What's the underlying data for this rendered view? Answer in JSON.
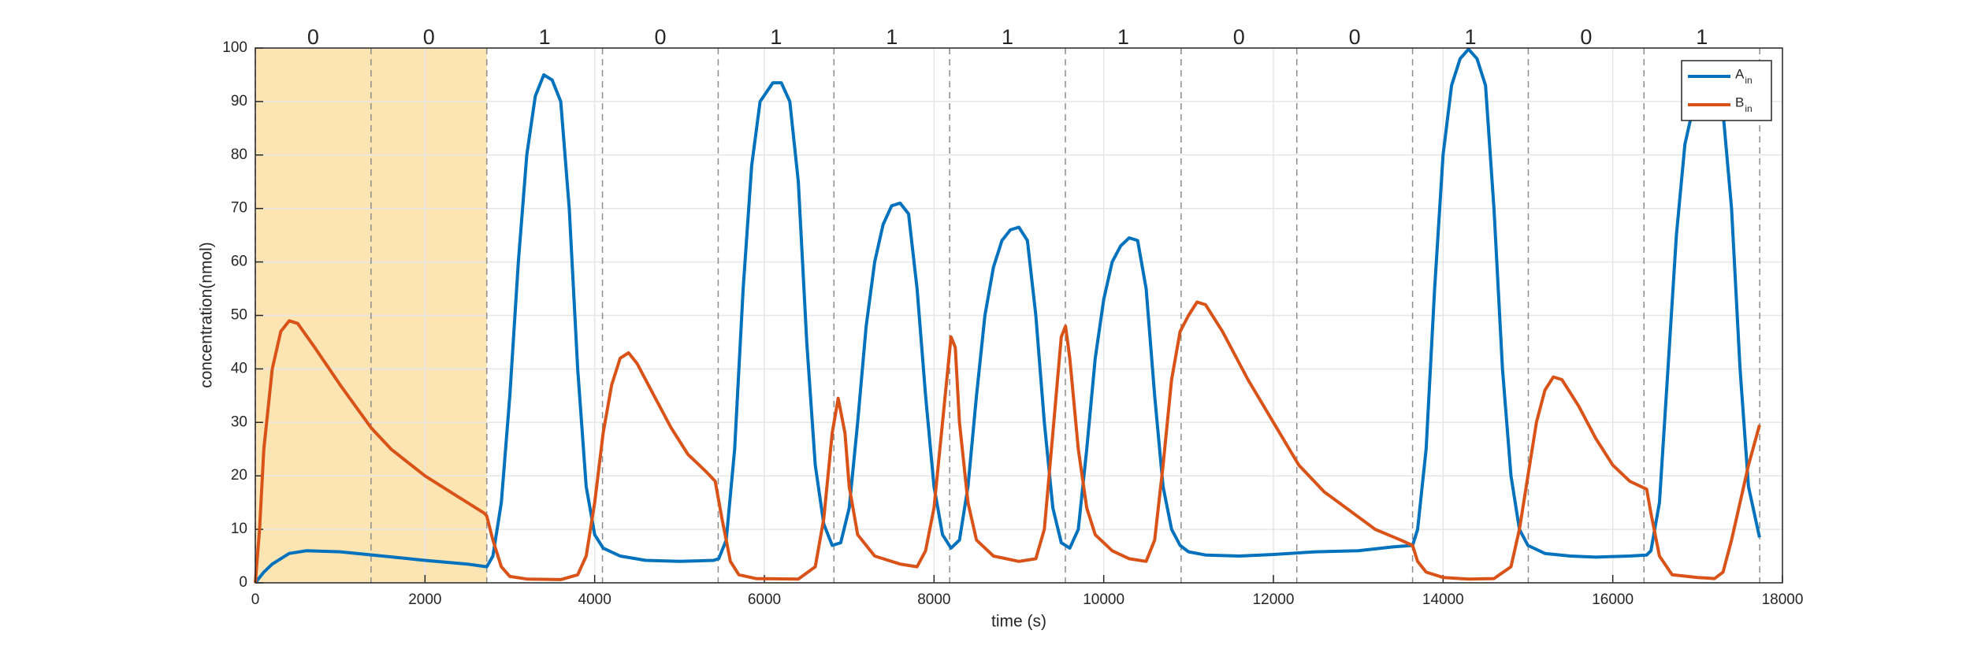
{
  "chart_data": {
    "type": "line",
    "xlabel": "time (s)",
    "ylabel": "concentration(nmol)",
    "xlim": [
      0,
      18000
    ],
    "xticks": [
      0,
      2000,
      4000,
      6000,
      8000,
      10000,
      12000,
      14000,
      16000,
      18000
    ],
    "ylim": [
      0,
      100
    ],
    "yticks": [
      0,
      10,
      20,
      30,
      40,
      50,
      60,
      70,
      80,
      90,
      100
    ],
    "grid": true,
    "legend": "upper right",
    "shaded_range": [
      0,
      2728
    ],
    "shade_color": "#fde4b3",
    "segment_bounds": [
      0,
      1364,
      2728,
      4092,
      5456,
      6820,
      8184,
      9548,
      10912,
      12276,
      13640,
      15004,
      16368,
      17732
    ],
    "segment_labels": [
      0,
      0,
      1,
      0,
      1,
      1,
      1,
      1,
      0,
      0,
      1,
      0,
      1
    ],
    "series": [
      {
        "name": "A",
        "name_subscript": "in",
        "color": "#0072bd",
        "x": [
          0,
          100,
          200,
          400,
          600,
          1000,
          1500,
          2000,
          2500,
          2728,
          2800,
          2900,
          3000,
          3100,
          3200,
          3300,
          3400,
          3500,
          3600,
          3700,
          3800,
          3900,
          4000,
          4100,
          4300,
          4600,
          5000,
          5400,
          5462,
          5550,
          5650,
          5750,
          5850,
          5950,
          6100,
          6200,
          6300,
          6400,
          6500,
          6600,
          6700,
          6800,
          6900,
          7000,
          7100,
          7200,
          7300,
          7400,
          7500,
          7600,
          7700,
          7800,
          7900,
          8000,
          8100,
          8200,
          8300,
          8400,
          8500,
          8600,
          8700,
          8800,
          8900,
          9000,
          9100,
          9200,
          9300,
          9400,
          9500,
          9600,
          9700,
          9800,
          9900,
          10000,
          10100,
          10200,
          10300,
          10400,
          10500,
          10600,
          10700,
          10800,
          10900,
          11000,
          11200,
          11600,
          12000,
          12500,
          13000,
          13400,
          13640,
          13700,
          13800,
          13900,
          14000,
          14100,
          14200,
          14300,
          14400,
          14500,
          14600,
          14700,
          14800,
          14900,
          15000,
          15200,
          15500,
          15800,
          16200,
          16400,
          16450,
          16550,
          16650,
          16750,
          16850,
          16950,
          17050,
          17150,
          17300,
          17400,
          17500,
          17600,
          17730
        ],
        "values": [
          0,
          2,
          3.5,
          5.5,
          6,
          5.8,
          5,
          4.2,
          3.5,
          3,
          5,
          15,
          35,
          60,
          80,
          91,
          95,
          94,
          90,
          70,
          40,
          18,
          9,
          6.5,
          5,
          4.2,
          4,
          4.2,
          4.5,
          8,
          25,
          55,
          78,
          90,
          93.5,
          93.5,
          90,
          75,
          45,
          22,
          11,
          7,
          7.5,
          14,
          30,
          48,
          60,
          67,
          70.5,
          71,
          69,
          55,
          35,
          18,
          9,
          6.5,
          8,
          18,
          35,
          50,
          59,
          64,
          66,
          66.5,
          64,
          50,
          30,
          14,
          7.5,
          6.5,
          10,
          25,
          42,
          53,
          60,
          63,
          64.5,
          64,
          55,
          35,
          18,
          10,
          7,
          5.8,
          5.2,
          5,
          5.3,
          5.8,
          6,
          6.7,
          7,
          10,
          25,
          55,
          80,
          93,
          98,
          99.8,
          98,
          93,
          70,
          40,
          20,
          10,
          7,
          5.5,
          5,
          4.8,
          5,
          5.2,
          6,
          15,
          40,
          65,
          82,
          89,
          91,
          91,
          88,
          70,
          40,
          18,
          8.5
        ]
      },
      {
        "name": "B",
        "name_subscript": "in",
        "color": "#d95319",
        "x": [
          0,
          50,
          100,
          200,
          300,
          400,
          500,
          700,
          1000,
          1364,
          1600,
          2000,
          2400,
          2700,
          2728,
          2800,
          2900,
          3000,
          3200,
          3600,
          3800,
          3900,
          4000,
          4100,
          4200,
          4300,
          4400,
          4500,
          4700,
          4900,
          5100,
          5300,
          5420,
          5500,
          5600,
          5700,
          5900,
          6400,
          6600,
          6700,
          6800,
          6870,
          6950,
          7000,
          7100,
          7300,
          7600,
          7800,
          7900,
          8000,
          8100,
          8200,
          8250,
          8300,
          8400,
          8500,
          8700,
          9000,
          9200,
          9300,
          9400,
          9500,
          9550,
          9600,
          9700,
          9800,
          9900,
          10100,
          10300,
          10500,
          10600,
          10700,
          10800,
          10900,
          11000,
          11100,
          11200,
          11400,
          11700,
          12000,
          12300,
          12600,
          12900,
          13200,
          13500,
          13640,
          13700,
          13800,
          14000,
          14300,
          14600,
          14800,
          14900,
          15000,
          15100,
          15200,
          15300,
          15400,
          15600,
          15800,
          16000,
          16200,
          16400,
          16450,
          16550,
          16700,
          17000,
          17200,
          17300,
          17400,
          17500,
          17600,
          17730
        ],
        "values": [
          0,
          10,
          25,
          40,
          47,
          49,
          48.5,
          44,
          37,
          29,
          25,
          20,
          16,
          13,
          12.5,
          8,
          3,
          1.2,
          0.7,
          0.6,
          1.5,
          5,
          15,
          28,
          37,
          42,
          43,
          41,
          35,
          29,
          24,
          21,
          19,
          12,
          4,
          1.5,
          0.8,
          0.7,
          3,
          12,
          28,
          34.5,
          28,
          18,
          9,
          5,
          3.5,
          3,
          6,
          14,
          30,
          46,
          44,
          30,
          15,
          8,
          5,
          4,
          4.5,
          10,
          28,
          46,
          48,
          42,
          25,
          14,
          9,
          6,
          4.5,
          4,
          8,
          22,
          38,
          47,
          50,
          52.5,
          52,
          47,
          38,
          30,
          22,
          17,
          13.5,
          10,
          8,
          7,
          4,
          2,
          1,
          0.7,
          0.8,
          3,
          10,
          20,
          30,
          36,
          38.5,
          38,
          33,
          27,
          22,
          19,
          17.5,
          13,
          5,
          1.5,
          1,
          0.8,
          2,
          8,
          15,
          22,
          29.5
        ]
      }
    ]
  }
}
